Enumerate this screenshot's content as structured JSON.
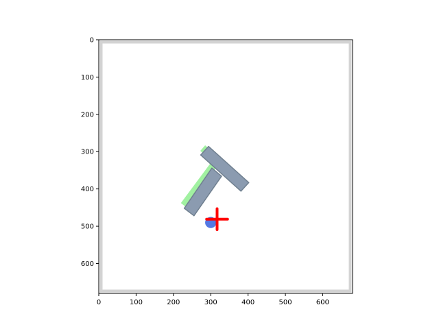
{
  "chart_data": {
    "type": "scatter",
    "title": "",
    "xlabel": "",
    "ylabel": "",
    "xlim": [
      0,
      680
    ],
    "ylim": [
      680,
      0
    ],
    "y_axis_inverted": true,
    "grid": false,
    "legend": "none",
    "x_ticks": [
      0,
      100,
      200,
      300,
      400,
      500,
      600
    ],
    "y_ticks": [
      0,
      100,
      200,
      300,
      400,
      500,
      600
    ],
    "x_tick_labels": [
      "0",
      "100",
      "200",
      "300",
      "400",
      "500",
      "600"
    ],
    "y_tick_labels": [
      "0",
      "100",
      "200",
      "300",
      "400",
      "500",
      "600"
    ],
    "workspace_border_color": "#d3d3d3",
    "scene": {
      "goal_t_shape": {
        "color": "#90ee90",
        "bar": [
          [
            285,
            283
          ],
          [
            375,
            362
          ],
          [
            362,
            378
          ],
          [
            272,
            298
          ]
        ],
        "stem": [
          [
            300,
            330
          ],
          [
            313,
            345
          ],
          [
            238,
            452
          ],
          [
            220,
            438
          ]
        ]
      },
      "t_block": {
        "fill_color": "#8b9bb0",
        "edge_color": "#708090",
        "bar": [
          [
            294,
            286
          ],
          [
            402,
            383
          ],
          [
            381,
            406
          ],
          [
            273,
            309
          ]
        ],
        "stem": [
          [
            303,
            344
          ],
          [
            329,
            366
          ],
          [
            255,
            472
          ],
          [
            229,
            452
          ]
        ]
      },
      "agent": {
        "color": "#4169e1",
        "center": [
          300,
          490
        ],
        "radius": 15
      },
      "target_marker": {
        "color": "#ff0000",
        "center": [
          317,
          481
        ],
        "arm": 28
      }
    }
  }
}
